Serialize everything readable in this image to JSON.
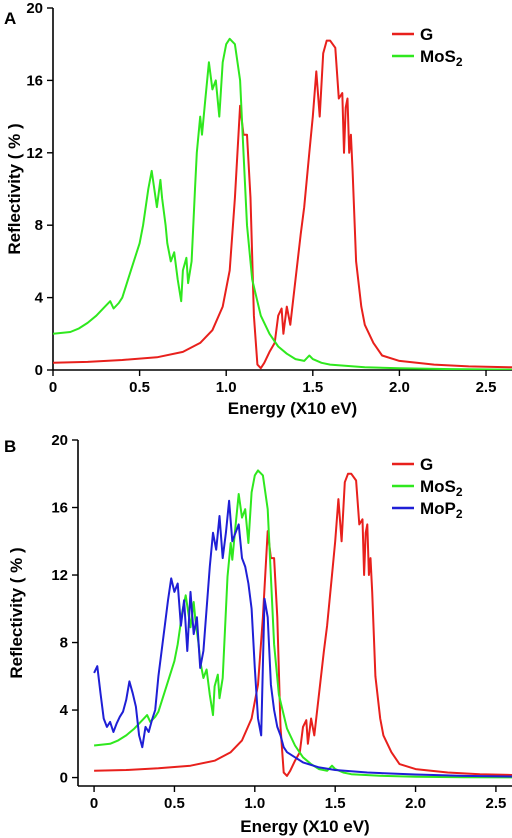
{
  "chart_data": [
    {
      "panel_label": "A",
      "type": "line",
      "xlabel": "Energy (X10 eV)",
      "ylabel": "Reflectivity ( % )",
      "xlim": [
        0,
        2.65
      ],
      "ylim": [
        0,
        20
      ],
      "x_ticks": [
        "0",
        "0.5",
        "1.0",
        "1.5",
        "2.0",
        "2.5"
      ],
      "x_tick_values": [
        0,
        0.5,
        1.0,
        1.5,
        2.0,
        2.5
      ],
      "y_ticks": [
        "0",
        "4",
        "8",
        "12",
        "16",
        "20"
      ],
      "y_tick_values": [
        0,
        4,
        8,
        12,
        16,
        20
      ],
      "legend_position": "top-right",
      "series": [
        {
          "name": "G",
          "color": "#e8201c",
          "x": [
            0,
            0.2,
            0.4,
            0.6,
            0.75,
            0.85,
            0.92,
            0.98,
            1.02,
            1.05,
            1.08,
            1.1,
            1.12,
            1.14,
            1.16,
            1.18,
            1.2,
            1.22,
            1.25,
            1.28,
            1.3,
            1.32,
            1.33,
            1.35,
            1.37,
            1.4,
            1.43,
            1.45,
            1.48,
            1.5,
            1.52,
            1.54,
            1.56,
            1.58,
            1.6,
            1.63,
            1.65,
            1.67,
            1.68,
            1.69,
            1.7,
            1.71,
            1.72,
            1.73,
            1.75,
            1.78,
            1.8,
            1.85,
            1.9,
            2.0,
            2.2,
            2.4,
            2.65
          ],
          "values": [
            0.4,
            0.45,
            0.55,
            0.7,
            1.0,
            1.5,
            2.2,
            3.5,
            5.5,
            9.5,
            14.6,
            13.0,
            13.0,
            9.5,
            3.0,
            0.3,
            0.1,
            0.4,
            1.0,
            1.5,
            3.0,
            3.4,
            2.0,
            3.5,
            2.5,
            5.0,
            7.5,
            9.0,
            12.0,
            14.0,
            16.5,
            14.0,
            17.5,
            18.2,
            18.2,
            17.8,
            15.0,
            15.3,
            12.0,
            14.5,
            15.0,
            12.0,
            13.0,
            11.0,
            6.0,
            3.5,
            2.5,
            1.5,
            0.8,
            0.5,
            0.3,
            0.2,
            0.15
          ]
        },
        {
          "name": "MoS2",
          "color": "#2fe81e",
          "x": [
            0,
            0.1,
            0.15,
            0.2,
            0.25,
            0.3,
            0.33,
            0.35,
            0.38,
            0.4,
            0.45,
            0.5,
            0.52,
            0.55,
            0.57,
            0.6,
            0.62,
            0.63,
            0.65,
            0.66,
            0.68,
            0.7,
            0.72,
            0.74,
            0.75,
            0.77,
            0.78,
            0.8,
            0.82,
            0.83,
            0.85,
            0.86,
            0.88,
            0.9,
            0.92,
            0.94,
            0.96,
            0.98,
            1.0,
            1.02,
            1.05,
            1.08,
            1.1,
            1.12,
            1.15,
            1.2,
            1.25,
            1.3,
            1.35,
            1.4,
            1.45,
            1.48,
            1.5,
            1.55,
            1.6,
            1.8,
            2.0,
            2.3,
            2.65
          ],
          "values": [
            2.0,
            2.1,
            2.3,
            2.6,
            3.0,
            3.5,
            3.8,
            3.4,
            3.7,
            4.0,
            5.5,
            7.0,
            8.0,
            10.0,
            11.0,
            9.0,
            10.5,
            9.5,
            8.0,
            7.0,
            6.0,
            6.5,
            5.0,
            3.8,
            5.5,
            6.2,
            4.8,
            6.0,
            10.0,
            12.0,
            14.0,
            13.0,
            15.0,
            17.0,
            15.5,
            16.0,
            14.0,
            17.0,
            18.0,
            18.3,
            18.0,
            16.0,
            12.0,
            8.0,
            5.0,
            3.0,
            2.0,
            1.3,
            0.9,
            0.6,
            0.5,
            0.8,
            0.6,
            0.4,
            0.3,
            0.15,
            0.1,
            0.05,
            0.02
          ]
        }
      ]
    },
    {
      "panel_label": "B",
      "type": "line",
      "xlabel": "Energy (X10 eV)",
      "ylabel": "Reflectivity ( % )",
      "xlim": [
        -0.1,
        2.6
      ],
      "ylim": [
        -0.5,
        20
      ],
      "x_ticks": [
        "0",
        "0.5",
        "1.0",
        "1.5",
        "2.0",
        "2.5"
      ],
      "x_tick_values": [
        0,
        0.5,
        1.0,
        1.5,
        2.0,
        2.5
      ],
      "y_ticks": [
        "0",
        "4",
        "8",
        "12",
        "16",
        "20"
      ],
      "y_tick_values": [
        0,
        4,
        8,
        12,
        16,
        20
      ],
      "legend_position": "top-right",
      "series": [
        {
          "name": "G",
          "color": "#e8201c",
          "x": [
            0,
            0.2,
            0.4,
            0.6,
            0.75,
            0.85,
            0.92,
            0.98,
            1.02,
            1.05,
            1.08,
            1.1,
            1.12,
            1.14,
            1.16,
            1.18,
            1.2,
            1.22,
            1.25,
            1.28,
            1.3,
            1.32,
            1.33,
            1.35,
            1.37,
            1.4,
            1.43,
            1.45,
            1.48,
            1.5,
            1.52,
            1.54,
            1.56,
            1.58,
            1.6,
            1.63,
            1.65,
            1.67,
            1.68,
            1.69,
            1.7,
            1.71,
            1.72,
            1.73,
            1.75,
            1.78,
            1.8,
            1.85,
            1.9,
            2.0,
            2.2,
            2.4,
            2.6
          ],
          "values": [
            0.4,
            0.45,
            0.55,
            0.7,
            1.0,
            1.5,
            2.2,
            3.5,
            5.5,
            9.5,
            14.6,
            13.0,
            13.0,
            9.5,
            3.0,
            0.3,
            0.1,
            0.4,
            1.0,
            1.5,
            3.0,
            3.4,
            2.0,
            3.5,
            2.5,
            5.0,
            7.5,
            9.0,
            12.0,
            14.0,
            16.5,
            14.0,
            17.5,
            18.0,
            18.0,
            17.6,
            15.0,
            15.3,
            12.0,
            14.5,
            15.0,
            12.0,
            13.0,
            11.0,
            6.0,
            3.5,
            2.5,
            1.5,
            0.8,
            0.5,
            0.3,
            0.2,
            0.15
          ]
        },
        {
          "name": "MoS2",
          "color": "#2fe81e",
          "x": [
            0,
            0.1,
            0.15,
            0.2,
            0.25,
            0.3,
            0.33,
            0.35,
            0.38,
            0.4,
            0.45,
            0.5,
            0.52,
            0.55,
            0.57,
            0.6,
            0.62,
            0.63,
            0.65,
            0.66,
            0.68,
            0.7,
            0.72,
            0.74,
            0.75,
            0.77,
            0.78,
            0.8,
            0.82,
            0.83,
            0.85,
            0.86,
            0.88,
            0.9,
            0.92,
            0.94,
            0.96,
            0.98,
            1.0,
            1.02,
            1.05,
            1.08,
            1.1,
            1.12,
            1.15,
            1.2,
            1.25,
            1.3,
            1.35,
            1.4,
            1.45,
            1.48,
            1.5,
            1.55,
            1.6,
            1.8,
            2.0,
            2.3,
            2.6
          ],
          "values": [
            1.9,
            2.0,
            2.2,
            2.5,
            2.9,
            3.4,
            3.7,
            3.3,
            3.6,
            3.9,
            5.4,
            6.9,
            7.9,
            9.9,
            10.8,
            8.9,
            10.4,
            9.4,
            7.9,
            6.9,
            5.9,
            6.4,
            4.9,
            3.7,
            5.4,
            6.1,
            4.7,
            5.9,
            9.9,
            11.9,
            13.9,
            12.9,
            14.9,
            16.8,
            15.4,
            15.9,
            13.9,
            16.9,
            17.9,
            18.2,
            17.9,
            15.9,
            11.9,
            7.9,
            4.9,
            2.9,
            1.9,
            1.2,
            0.8,
            0.5,
            0.4,
            0.7,
            0.5,
            0.3,
            0.2,
            0.1,
            0.05,
            0.02,
            0.01
          ]
        },
        {
          "name": "MoP2",
          "color": "#1f1fd6",
          "x": [
            0,
            0.02,
            0.04,
            0.06,
            0.08,
            0.1,
            0.12,
            0.14,
            0.16,
            0.18,
            0.2,
            0.22,
            0.24,
            0.26,
            0.28,
            0.3,
            0.32,
            0.34,
            0.36,
            0.38,
            0.4,
            0.42,
            0.44,
            0.46,
            0.48,
            0.5,
            0.52,
            0.54,
            0.56,
            0.58,
            0.6,
            0.62,
            0.64,
            0.66,
            0.68,
            0.7,
            0.72,
            0.74,
            0.76,
            0.78,
            0.8,
            0.82,
            0.84,
            0.86,
            0.88,
            0.9,
            0.92,
            0.94,
            0.96,
            0.98,
            1.0,
            1.02,
            1.04,
            1.06,
            1.08,
            1.1,
            1.12,
            1.14,
            1.16,
            1.18,
            1.2,
            1.25,
            1.3,
            1.4,
            1.5,
            1.7,
            2.0,
            2.3,
            2.6
          ],
          "values": [
            6.2,
            6.6,
            5.0,
            3.5,
            3.0,
            3.3,
            2.7,
            3.2,
            3.6,
            3.9,
            4.6,
            5.7,
            5.0,
            4.2,
            2.5,
            1.8,
            3.0,
            2.7,
            3.4,
            4.0,
            6.0,
            7.5,
            9.0,
            10.5,
            11.8,
            11.0,
            11.5,
            9.0,
            10.5,
            7.5,
            11.0,
            8.5,
            9.5,
            6.5,
            7.5,
            10.0,
            12.5,
            14.5,
            13.5,
            15.5,
            13.0,
            14.5,
            16.4,
            14.0,
            14.5,
            15.0,
            13.0,
            12.5,
            11.5,
            10.0,
            6.5,
            3.5,
            2.5,
            10.6,
            9.5,
            5.5,
            4.0,
            3.0,
            2.5,
            1.8,
            1.5,
            1.2,
            0.9,
            0.6,
            0.45,
            0.3,
            0.18,
            0.1,
            0.06
          ]
        }
      ]
    }
  ]
}
